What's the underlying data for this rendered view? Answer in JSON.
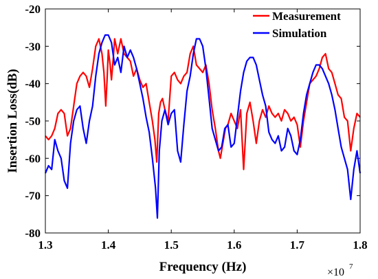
{
  "chart_data": {
    "type": "line",
    "title": "",
    "xlabel": "Frequency (Hz)",
    "ylabel": "Insertion Loss(dB)",
    "x_exponent_base": "×10",
    "x_exponent_power": "7",
    "xlim": [
      1.3,
      1.8
    ],
    "ylim": [
      -80,
      -20
    ],
    "xticks": [
      1.3,
      1.4,
      1.5,
      1.6,
      1.7,
      1.8
    ],
    "xtick_labels": [
      "1.3",
      "1.4",
      "1.5",
      "1.6",
      "1.7",
      "1.8"
    ],
    "yticks": [
      -80,
      -70,
      -60,
      -50,
      -40,
      -30,
      -20
    ],
    "ytick_labels": [
      "-80",
      "-70",
      "-60",
      "-50",
      "-40",
      "-30",
      "-20"
    ],
    "grid": false,
    "legend_position": "top-right",
    "series": [
      {
        "name": "Measurement",
        "color": "#ff0000",
        "x": [
          1.3,
          1.305,
          1.31,
          1.315,
          1.32,
          1.325,
          1.33,
          1.335,
          1.34,
          1.345,
          1.35,
          1.355,
          1.36,
          1.365,
          1.37,
          1.375,
          1.38,
          1.385,
          1.39,
          1.393,
          1.396,
          1.398,
          1.4,
          1.403,
          1.405,
          1.408,
          1.41,
          1.415,
          1.42,
          1.425,
          1.43,
          1.435,
          1.44,
          1.445,
          1.45,
          1.455,
          1.46,
          1.465,
          1.47,
          1.474,
          1.477,
          1.48,
          1.483,
          1.486,
          1.49,
          1.495,
          1.5,
          1.505,
          1.51,
          1.515,
          1.52,
          1.525,
          1.53,
          1.535,
          1.54,
          1.545,
          1.55,
          1.555,
          1.56,
          1.565,
          1.57,
          1.575,
          1.578,
          1.582,
          1.586,
          1.59,
          1.595,
          1.6,
          1.605,
          1.61,
          1.615,
          1.62,
          1.625,
          1.63,
          1.635,
          1.64,
          1.645,
          1.65,
          1.655,
          1.66,
          1.665,
          1.67,
          1.675,
          1.68,
          1.685,
          1.69,
          1.695,
          1.7,
          1.705,
          1.71,
          1.715,
          1.72,
          1.725,
          1.73,
          1.735,
          1.74,
          1.745,
          1.75,
          1.755,
          1.76,
          1.765,
          1.77,
          1.775,
          1.78,
          1.785,
          1.79,
          1.795,
          1.8
        ],
        "values": [
          -54,
          -55,
          -54,
          -52,
          -48,
          -47,
          -48,
          -54,
          -52,
          -46,
          -40,
          -38,
          -37,
          -38,
          -41,
          -36,
          -30,
          -28,
          -32,
          -37,
          -46,
          -39,
          -31,
          -35,
          -39,
          -33,
          -28,
          -32,
          -28,
          -32,
          -33,
          -34,
          -38,
          -36,
          -39,
          -41,
          -40,
          -45,
          -50,
          -55,
          -61,
          -48,
          -45,
          -44,
          -47,
          -50,
          -38,
          -37,
          -39,
          -40,
          -38,
          -37,
          -32,
          -30,
          -35,
          -36,
          -37,
          -35,
          -40,
          -47,
          -52,
          -58,
          -60,
          -56,
          -52,
          -51,
          -48,
          -50,
          -52,
          -47,
          -63,
          -48,
          -45,
          -50,
          -56,
          -50,
          -47,
          -49,
          -46,
          -48,
          -49,
          -48,
          -50,
          -47,
          -48,
          -50,
          -49,
          -51,
          -57,
          -50,
          -45,
          -40,
          -39,
          -38,
          -36,
          -33,
          -32,
          -36,
          -37,
          -40,
          -43,
          -44,
          -49,
          -50,
          -58,
          -52,
          -48,
          -49
        ]
      },
      {
        "name": "Simulation",
        "color": "#0000ff",
        "x": [
          1.3,
          1.305,
          1.31,
          1.315,
          1.32,
          1.325,
          1.33,
          1.335,
          1.34,
          1.345,
          1.35,
          1.355,
          1.36,
          1.365,
          1.37,
          1.375,
          1.38,
          1.385,
          1.39,
          1.395,
          1.4,
          1.405,
          1.41,
          1.415,
          1.42,
          1.425,
          1.43,
          1.435,
          1.44,
          1.445,
          1.45,
          1.455,
          1.46,
          1.465,
          1.47,
          1.475,
          1.478,
          1.481,
          1.485,
          1.49,
          1.495,
          1.5,
          1.505,
          1.51,
          1.515,
          1.52,
          1.525,
          1.53,
          1.535,
          1.54,
          1.545,
          1.55,
          1.555,
          1.56,
          1.565,
          1.57,
          1.575,
          1.58,
          1.585,
          1.59,
          1.595,
          1.6,
          1.605,
          1.61,
          1.615,
          1.62,
          1.625,
          1.63,
          1.635,
          1.64,
          1.645,
          1.65,
          1.655,
          1.66,
          1.665,
          1.67,
          1.675,
          1.68,
          1.685,
          1.69,
          1.695,
          1.7,
          1.705,
          1.71,
          1.715,
          1.72,
          1.725,
          1.73,
          1.735,
          1.74,
          1.745,
          1.75,
          1.755,
          1.76,
          1.765,
          1.77,
          1.775,
          1.78,
          1.785,
          1.79,
          1.795,
          1.8
        ],
        "values": [
          -64,
          -62,
          -63,
          -55,
          -58,
          -60,
          -66,
          -68,
          -56,
          -50,
          -47,
          -46,
          -52,
          -56,
          -50,
          -46,
          -38,
          -32,
          -29,
          -27,
          -27,
          -29,
          -35,
          -33,
          -37,
          -30,
          -33,
          -31,
          -33,
          -36,
          -40,
          -44,
          -49,
          -53,
          -60,
          -68,
          -76,
          -58,
          -50,
          -47,
          -51,
          -48,
          -47,
          -58,
          -61,
          -51,
          -42,
          -38,
          -32,
          -28,
          -28,
          -30,
          -36,
          -44,
          -52,
          -55,
          -58,
          -57,
          -52,
          -51,
          -57,
          -56,
          -49,
          -42,
          -37,
          -34,
          -33,
          -33,
          -35,
          -39,
          -43,
          -46,
          -53,
          -55,
          -56,
          -54,
          -58,
          -57,
          -52,
          -54,
          -58,
          -59,
          -55,
          -48,
          -43,
          -40,
          -37,
          -35,
          -35,
          -36,
          -38,
          -40,
          -43,
          -47,
          -52,
          -57,
          -60,
          -63,
          -71,
          -63,
          -58,
          -64
        ]
      }
    ]
  }
}
